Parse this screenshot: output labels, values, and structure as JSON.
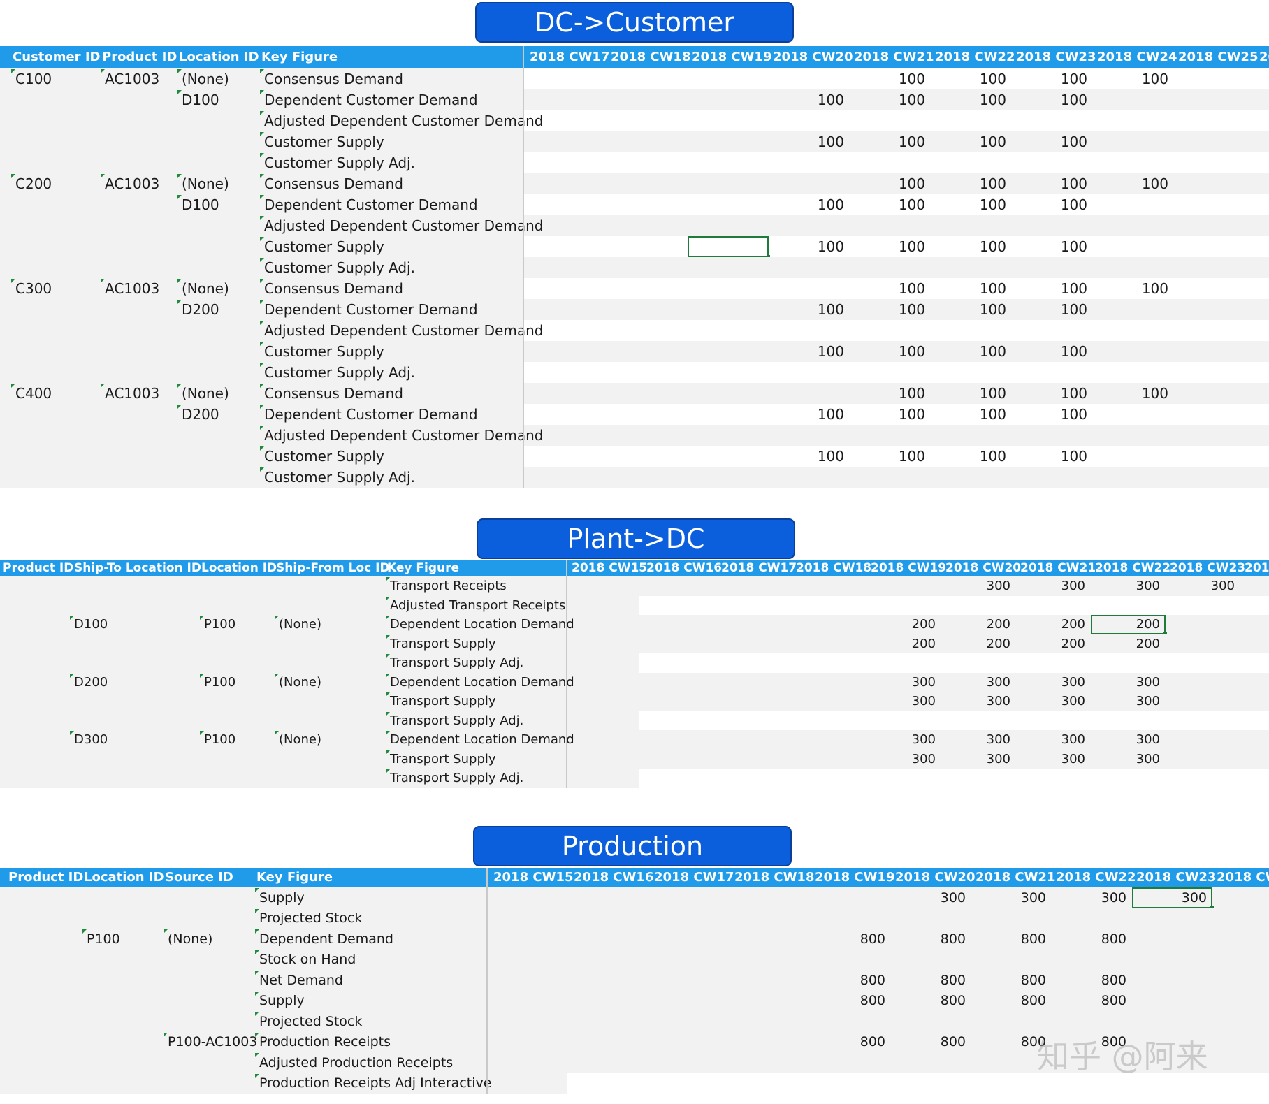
{
  "sections": [
    {
      "title": "DC->Customer",
      "headers": [
        "Customer ID",
        "Product ID",
        "Location ID",
        "Key Figure"
      ],
      "weeks": [
        "2018 CW17",
        "2018 CW18",
        "2018 CW19",
        "2018 CW20",
        "2018 CW21",
        "2018 CW22",
        "2018 CW23",
        "2018 CW24",
        "2018 CW25",
        "20"
      ],
      "rows": [
        {
          "cells": [
            "C100",
            "AC1003",
            "(None)",
            "Consensus Demand"
          ],
          "values": [
            "",
            "",
            "",
            "",
            "100",
            "100",
            "100",
            "100",
            "",
            ""
          ]
        },
        {
          "cells": [
            "",
            "",
            "D100",
            "Dependent Customer Demand"
          ],
          "values": [
            "",
            "",
            "",
            "100",
            "100",
            "100",
            "100",
            "",
            "",
            ""
          ]
        },
        {
          "cells": [
            "",
            "",
            "",
            "Adjusted Dependent Customer Demand"
          ],
          "values": [
            "",
            "",
            "",
            "",
            "",
            "",
            "",
            "",
            "",
            ""
          ]
        },
        {
          "cells": [
            "",
            "",
            "",
            "Customer Supply"
          ],
          "values": [
            "",
            "",
            "",
            "100",
            "100",
            "100",
            "100",
            "",
            "",
            ""
          ]
        },
        {
          "cells": [
            "",
            "",
            "",
            "Customer Supply Adj."
          ],
          "values": [
            "",
            "",
            "",
            "",
            "",
            "",
            "",
            "",
            "",
            ""
          ]
        },
        {
          "cells": [
            "C200",
            "AC1003",
            "(None)",
            "Consensus Demand"
          ],
          "values": [
            "",
            "",
            "",
            "",
            "100",
            "100",
            "100",
            "100",
            "",
            ""
          ]
        },
        {
          "cells": [
            "",
            "",
            "D100",
            "Dependent Customer Demand"
          ],
          "values": [
            "",
            "",
            "",
            "100",
            "100",
            "100",
            "100",
            "",
            "",
            ""
          ]
        },
        {
          "cells": [
            "",
            "",
            "",
            "Adjusted Dependent Customer Demand"
          ],
          "values": [
            "",
            "",
            "",
            "",
            "",
            "",
            "",
            "",
            "",
            ""
          ]
        },
        {
          "cells": [
            "",
            "",
            "",
            "Customer Supply"
          ],
          "values": [
            "",
            "",
            "",
            "100",
            "100",
            "100",
            "100",
            "",
            "",
            ""
          ]
        },
        {
          "cells": [
            "",
            "",
            "",
            "Customer Supply Adj."
          ],
          "values": [
            "",
            "",
            "",
            "",
            "",
            "",
            "",
            "",
            "",
            ""
          ]
        },
        {
          "cells": [
            "C300",
            "AC1003",
            "(None)",
            "Consensus Demand"
          ],
          "values": [
            "",
            "",
            "",
            "",
            "100",
            "100",
            "100",
            "100",
            "",
            ""
          ]
        },
        {
          "cells": [
            "",
            "",
            "D200",
            "Dependent Customer Demand"
          ],
          "values": [
            "",
            "",
            "",
            "100",
            "100",
            "100",
            "100",
            "",
            "",
            ""
          ]
        },
        {
          "cells": [
            "",
            "",
            "",
            "Adjusted Dependent Customer Demand"
          ],
          "values": [
            "",
            "",
            "",
            "",
            "",
            "",
            "",
            "",
            "",
            ""
          ]
        },
        {
          "cells": [
            "",
            "",
            "",
            "Customer Supply"
          ],
          "values": [
            "",
            "",
            "",
            "100",
            "100",
            "100",
            "100",
            "",
            "",
            ""
          ]
        },
        {
          "cells": [
            "",
            "",
            "",
            "Customer Supply Adj."
          ],
          "values": [
            "",
            "",
            "",
            "",
            "",
            "",
            "",
            "",
            "",
            ""
          ]
        },
        {
          "cells": [
            "C400",
            "AC1003",
            "(None)",
            "Consensus Demand"
          ],
          "values": [
            "",
            "",
            "",
            "",
            "100",
            "100",
            "100",
            "100",
            "",
            ""
          ]
        },
        {
          "cells": [
            "",
            "",
            "D200",
            "Dependent Customer Demand"
          ],
          "values": [
            "",
            "",
            "",
            "100",
            "100",
            "100",
            "100",
            "",
            "",
            ""
          ]
        },
        {
          "cells": [
            "",
            "",
            "",
            "Adjusted Dependent Customer Demand"
          ],
          "values": [
            "",
            "",
            "",
            "",
            "",
            "",
            "",
            "",
            "",
            ""
          ]
        },
        {
          "cells": [
            "",
            "",
            "",
            "Customer Supply"
          ],
          "values": [
            "",
            "",
            "",
            "100",
            "100",
            "100",
            "100",
            "",
            "",
            ""
          ]
        },
        {
          "cells": [
            "",
            "",
            "",
            "Customer Supply Adj."
          ],
          "values": [
            "",
            "",
            "",
            "",
            "",
            "",
            "",
            "",
            "",
            ""
          ]
        }
      ]
    },
    {
      "title": "Plant->DC",
      "headers": [
        "Product ID",
        "Ship-To Location ID",
        "Location ID",
        "Ship-From Loc ID",
        "Key Figure"
      ],
      "weeks": [
        "2018 CW15",
        "2018 CW16",
        "2018 CW17",
        "2018 CW18",
        "2018 CW19",
        "2018 CW20",
        "2018 CW21",
        "2018 CW22",
        "2018 CW23",
        "2018"
      ],
      "rows": [
        {
          "cells": [
            "",
            "",
            "",
            "",
            "Transport Receipts"
          ],
          "values": [
            "",
            "",
            "",
            "",
            "",
            "300",
            "300",
            "300",
            "300",
            ""
          ]
        },
        {
          "cells": [
            "",
            "",
            "",
            "",
            "Adjusted Transport Receipts"
          ],
          "values": [
            "",
            "",
            "",
            "",
            "",
            "",
            "",
            "",
            "",
            ""
          ]
        },
        {
          "cells": [
            "",
            "D100",
            "P100",
            "(None)",
            "Dependent Location Demand"
          ],
          "values": [
            "",
            "",
            "",
            "",
            "200",
            "200",
            "200",
            "200",
            "",
            ""
          ]
        },
        {
          "cells": [
            "",
            "",
            "",
            "",
            "Transport Supply"
          ],
          "values": [
            "",
            "",
            "",
            "",
            "200",
            "200",
            "200",
            "200",
            "",
            ""
          ]
        },
        {
          "cells": [
            "",
            "",
            "",
            "",
            "Transport Supply Adj."
          ],
          "values": [
            "",
            "",
            "",
            "",
            "",
            "",
            "",
            "",
            "",
            ""
          ]
        },
        {
          "cells": [
            "",
            "D200",
            "P100",
            "(None)",
            "Dependent Location Demand"
          ],
          "values": [
            "",
            "",
            "",
            "",
            "300",
            "300",
            "300",
            "300",
            "",
            ""
          ]
        },
        {
          "cells": [
            "",
            "",
            "",
            "",
            "Transport Supply"
          ],
          "values": [
            "",
            "",
            "",
            "",
            "300",
            "300",
            "300",
            "300",
            "",
            ""
          ]
        },
        {
          "cells": [
            "",
            "",
            "",
            "",
            "Transport Supply Adj."
          ],
          "values": [
            "",
            "",
            "",
            "",
            "",
            "",
            "",
            "",
            "",
            ""
          ]
        },
        {
          "cells": [
            "",
            "D300",
            "P100",
            "(None)",
            "Dependent Location Demand"
          ],
          "values": [
            "",
            "",
            "",
            "",
            "300",
            "300",
            "300",
            "300",
            "",
            ""
          ]
        },
        {
          "cells": [
            "",
            "",
            "",
            "",
            "Transport Supply"
          ],
          "values": [
            "",
            "",
            "",
            "",
            "300",
            "300",
            "300",
            "300",
            "",
            ""
          ]
        },
        {
          "cells": [
            "",
            "",
            "",
            "",
            "Transport Supply Adj."
          ],
          "values": [
            "",
            "",
            "",
            "",
            "",
            "",
            "",
            "",
            "",
            ""
          ]
        }
      ]
    },
    {
      "title": "Production",
      "headers": [
        "Product ID",
        "Location ID",
        "Source ID",
        "Key Figure"
      ],
      "weeks": [
        "2018 CW15",
        "2018 CW16",
        "2018 CW17",
        "2018 CW18",
        "2018 CW19",
        "2018 CW20",
        "2018 CW21",
        "2018 CW22",
        "2018 CW23",
        "2018 CW"
      ],
      "rows": [
        {
          "cells": [
            "",
            "",
            "",
            "Supply"
          ],
          "values": [
            "",
            "",
            "",
            "",
            "",
            "300",
            "300",
            "300",
            "300",
            ""
          ]
        },
        {
          "cells": [
            "",
            "",
            "",
            "Projected Stock"
          ],
          "values": [
            "",
            "",
            "",
            "",
            "",
            "",
            "",
            "",
            "",
            ""
          ]
        },
        {
          "cells": [
            "",
            "P100",
            "(None)",
            "Dependent Demand"
          ],
          "values": [
            "",
            "",
            "",
            "",
            "800",
            "800",
            "800",
            "800",
            "",
            ""
          ]
        },
        {
          "cells": [
            "",
            "",
            "",
            "Stock on Hand"
          ],
          "values": [
            "",
            "",
            "",
            "",
            "",
            "",
            "",
            "",
            "",
            ""
          ]
        },
        {
          "cells": [
            "",
            "",
            "",
            "Net Demand"
          ],
          "values": [
            "",
            "",
            "",
            "",
            "800",
            "800",
            "800",
            "800",
            "",
            ""
          ]
        },
        {
          "cells": [
            "",
            "",
            "",
            "Supply"
          ],
          "values": [
            "",
            "",
            "",
            "",
            "800",
            "800",
            "800",
            "800",
            "",
            ""
          ]
        },
        {
          "cells": [
            "",
            "",
            "",
            "Projected Stock"
          ],
          "values": [
            "",
            "",
            "",
            "",
            "",
            "",
            "",
            "",
            "",
            ""
          ]
        },
        {
          "cells": [
            "",
            "",
            "P100-AC1003",
            "Production Receipts"
          ],
          "values": [
            "",
            "",
            "",
            "",
            "800",
            "800",
            "800",
            "800",
            "",
            ""
          ]
        },
        {
          "cells": [
            "",
            "",
            "",
            "Adjusted Production Receipts"
          ],
          "values": [
            "",
            "",
            "",
            "",
            "",
            "",
            "",
            "",
            "",
            ""
          ]
        },
        {
          "cells": [
            "",
            "",
            "",
            "Production Receipts Adj Interactive"
          ],
          "values": [
            "",
            "",
            "",
            "",
            "",
            "",
            "",
            "",
            "",
            ""
          ]
        }
      ]
    }
  ],
  "watermark": "知乎 @阿来"
}
